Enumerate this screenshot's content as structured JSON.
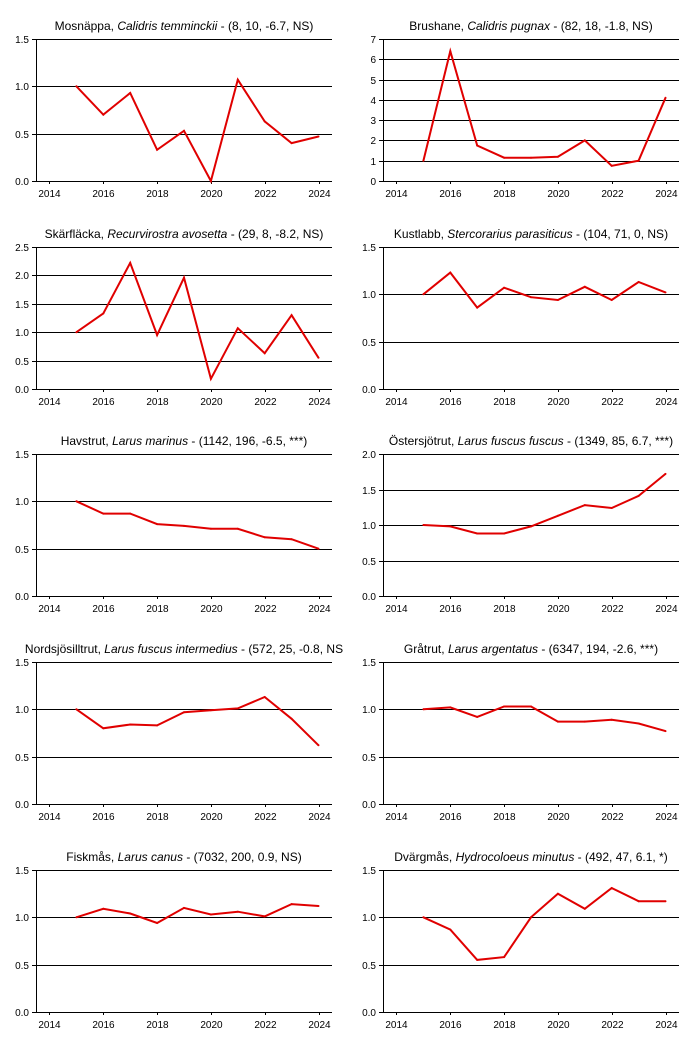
{
  "chart_data": [
    {
      "type": "line",
      "title_main": "Mosnäppa, ",
      "title_species": "Calidris temminckii",
      "title_stats": " - (8, 10, -6.7, NS)",
      "x": [
        2015,
        2016,
        2017,
        2018,
        2019,
        2020,
        2021,
        2022,
        2023,
        2024
      ],
      "values": [
        1.0,
        0.7,
        0.93,
        0.33,
        0.53,
        0.0,
        1.07,
        0.63,
        0.4,
        0.47
      ],
      "xlim": [
        2013.5,
        2024.5
      ],
      "xticks": [
        2014,
        2016,
        2018,
        2020,
        2022,
        2024
      ],
      "ylim": [
        0,
        1.5
      ],
      "yticks": [
        0,
        0.5,
        1,
        1.5
      ],
      "ytick_labels": [
        "0.0",
        "0.5",
        "1.0",
        "1.5"
      ],
      "color": "#e00000"
    },
    {
      "type": "line",
      "title_main": "Brushane, ",
      "title_species": "Calidris pugnax",
      "title_stats": " - (82, 18, -1.8, NS)",
      "x": [
        2015,
        2016,
        2017,
        2018,
        2019,
        2020,
        2021,
        2022,
        2023,
        2024
      ],
      "values": [
        1.0,
        6.4,
        1.75,
        1.15,
        1.15,
        1.2,
        2.0,
        0.75,
        1.0,
        4.1
      ],
      "xlim": [
        2013.5,
        2024.5
      ],
      "xticks": [
        2014,
        2016,
        2018,
        2020,
        2022,
        2024
      ],
      "ylim": [
        0,
        7
      ],
      "yticks": [
        0,
        1,
        2,
        3,
        4,
        5,
        6,
        7
      ],
      "ytick_labels": [
        "0",
        "1",
        "2",
        "3",
        "4",
        "5",
        "6",
        "7"
      ],
      "color": "#e00000"
    },
    {
      "type": "line",
      "title_main": "Skärfläcka, ",
      "title_species": "Recurvirostra avosetta",
      "title_stats": " - (29, 8, -8.2, NS)",
      "x": [
        2015,
        2016,
        2017,
        2018,
        2019,
        2020,
        2021,
        2022,
        2023,
        2024
      ],
      "values": [
        1.0,
        1.33,
        2.22,
        0.95,
        1.96,
        0.18,
        1.07,
        0.63,
        1.3,
        0.55
      ],
      "xlim": [
        2013.5,
        2024.5
      ],
      "xticks": [
        2014,
        2016,
        2018,
        2020,
        2022,
        2024
      ],
      "ylim": [
        0,
        2.5
      ],
      "yticks": [
        0,
        0.5,
        1,
        1.5,
        2,
        2.5
      ],
      "ytick_labels": [
        "0.0",
        "0.5",
        "1.0",
        "1.5",
        "2.0",
        "2.5"
      ],
      "color": "#e00000"
    },
    {
      "type": "line",
      "title_main": "Kustlabb, ",
      "title_species": "Stercorarius parasiticus",
      "title_stats": " - (104, 71, 0, NS)",
      "x": [
        2015,
        2016,
        2017,
        2018,
        2019,
        2020,
        2021,
        2022,
        2023,
        2024
      ],
      "values": [
        1.0,
        1.23,
        0.86,
        1.07,
        0.97,
        0.94,
        1.08,
        0.94,
        1.13,
        1.02
      ],
      "xlim": [
        2013.5,
        2024.5
      ],
      "xticks": [
        2014,
        2016,
        2018,
        2020,
        2022,
        2024
      ],
      "ylim": [
        0,
        1.5
      ],
      "yticks": [
        0,
        0.5,
        1,
        1.5
      ],
      "ytick_labels": [
        "0.0",
        "0.5",
        "1.0",
        "1.5"
      ],
      "color": "#e00000"
    },
    {
      "type": "line",
      "title_main": "Havstrut, ",
      "title_species": "Larus marinus",
      "title_stats": " - (1142, 196, -6.5, ***)",
      "x": [
        2015,
        2016,
        2017,
        2018,
        2019,
        2020,
        2021,
        2022,
        2023,
        2024
      ],
      "values": [
        1.0,
        0.87,
        0.87,
        0.76,
        0.74,
        0.71,
        0.71,
        0.62,
        0.6,
        0.5
      ],
      "xlim": [
        2013.5,
        2024.5
      ],
      "xticks": [
        2014,
        2016,
        2018,
        2020,
        2022,
        2024
      ],
      "ylim": [
        0,
        1.5
      ],
      "yticks": [
        0,
        0.5,
        1,
        1.5
      ],
      "ytick_labels": [
        "0.0",
        "0.5",
        "1.0",
        "1.5"
      ],
      "color": "#e00000"
    },
    {
      "type": "line",
      "title_main": "Östersjötrut, ",
      "title_species": "Larus fuscus fuscus",
      "title_stats": " - (1349, 85, 6.7, ***)",
      "x": [
        2015,
        2016,
        2017,
        2018,
        2019,
        2020,
        2021,
        2022,
        2023,
        2024
      ],
      "values": [
        1.0,
        0.98,
        0.88,
        0.88,
        0.98,
        1.13,
        1.28,
        1.24,
        1.41,
        1.72
      ],
      "xlim": [
        2013.5,
        2024.5
      ],
      "xticks": [
        2014,
        2016,
        2018,
        2020,
        2022,
        2024
      ],
      "ylim": [
        0,
        2
      ],
      "yticks": [
        0,
        0.5,
        1,
        1.5,
        2
      ],
      "ytick_labels": [
        "0.0",
        "0.5",
        "1.0",
        "1.5",
        "2.0"
      ],
      "color": "#e00000"
    },
    {
      "type": "line",
      "title_main": "Nordsjösilltrut, ",
      "title_species": "Larus fuscus intermedius",
      "title_stats": " - (572, 25, -0.8, NS",
      "x": [
        2015,
        2016,
        2017,
        2018,
        2019,
        2020,
        2021,
        2022,
        2023,
        2024
      ],
      "values": [
        1.0,
        0.8,
        0.84,
        0.83,
        0.97,
        0.99,
        1.01,
        1.13,
        0.9,
        0.62
      ],
      "xlim": [
        2013.5,
        2024.5
      ],
      "xticks": [
        2014,
        2016,
        2018,
        2020,
        2022,
        2024
      ],
      "ylim": [
        0,
        1.5
      ],
      "yticks": [
        0,
        0.5,
        1,
        1.5
      ],
      "ytick_labels": [
        "0.0",
        "0.5",
        "1.0",
        "1.5"
      ],
      "color": "#e00000"
    },
    {
      "type": "line",
      "title_main": "Gråtrut, ",
      "title_species": "Larus argentatus",
      "title_stats": " - (6347, 194, -2.6, ***)",
      "x": [
        2015,
        2016,
        2017,
        2018,
        2019,
        2020,
        2021,
        2022,
        2023,
        2024
      ],
      "values": [
        1.0,
        1.02,
        0.92,
        1.03,
        1.03,
        0.87,
        0.87,
        0.89,
        0.85,
        0.77
      ],
      "xlim": [
        2013.5,
        2024.5
      ],
      "xticks": [
        2014,
        2016,
        2018,
        2020,
        2022,
        2024
      ],
      "ylim": [
        0,
        1.5
      ],
      "yticks": [
        0,
        0.5,
        1,
        1.5
      ],
      "ytick_labels": [
        "0.0",
        "0.5",
        "1.0",
        "1.5"
      ],
      "color": "#e00000"
    },
    {
      "type": "line",
      "title_main": "Fiskmås, ",
      "title_species": "Larus canus",
      "title_stats": " - (7032, 200, 0.9, NS)",
      "x": [
        2015,
        2016,
        2017,
        2018,
        2019,
        2020,
        2021,
        2022,
        2023,
        2024
      ],
      "values": [
        1.0,
        1.09,
        1.04,
        0.94,
        1.1,
        1.03,
        1.06,
        1.01,
        1.14,
        1.12
      ],
      "xlim": [
        2013.5,
        2024.5
      ],
      "xticks": [
        2014,
        2016,
        2018,
        2020,
        2022,
        2024
      ],
      "ylim": [
        0,
        1.5
      ],
      "yticks": [
        0,
        0.5,
        1,
        1.5
      ],
      "ytick_labels": [
        "0.0",
        "0.5",
        "1.0",
        "1.5"
      ],
      "color": "#e00000"
    },
    {
      "type": "line",
      "title_main": "Dvärgmås, ",
      "title_species": "Hydrocoloeus minutus",
      "title_stats": " - (492, 47, 6.1, *)",
      "x": [
        2015,
        2016,
        2017,
        2018,
        2019,
        2020,
        2021,
        2022,
        2023,
        2024
      ],
      "values": [
        1.0,
        0.87,
        0.55,
        0.58,
        1.0,
        1.25,
        1.09,
        1.31,
        1.17,
        1.17
      ],
      "xlim": [
        2013.5,
        2024.5
      ],
      "xticks": [
        2014,
        2016,
        2018,
        2020,
        2022,
        2024
      ],
      "ylim": [
        0,
        1.5
      ],
      "yticks": [
        0,
        0.5,
        1,
        1.5
      ],
      "ytick_labels": [
        "0.0",
        "0.5",
        "1.0",
        "1.5"
      ],
      "color": "#e00000"
    }
  ]
}
